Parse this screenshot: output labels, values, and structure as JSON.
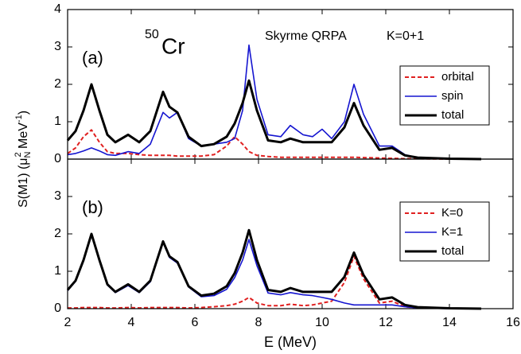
{
  "chart_data": [
    {
      "type": "line",
      "panel_label": "(a)",
      "nucleus": {
        "mass": "50",
        "symbol": "Cr"
      },
      "annotations": [
        "Skyrme QRPA",
        "K=0+1"
      ],
      "x": [
        2,
        2.25,
        2.5,
        2.75,
        3,
        3.25,
        3.5,
        3.9,
        4.25,
        4.6,
        5,
        5.2,
        5.45,
        5.8,
        6.2,
        6.6,
        7,
        7.25,
        7.5,
        7.7,
        7.95,
        8.3,
        8.7,
        9,
        9.4,
        9.7,
        10,
        10.3,
        10.7,
        11,
        11.3,
        11.8,
        12.2,
        12.6,
        13,
        14,
        15
      ],
      "series": [
        {
          "name": "orbital",
          "color": "#e02020",
          "linestyle": "dashed",
          "values": [
            0.15,
            0.3,
            0.6,
            0.78,
            0.45,
            0.2,
            0.15,
            0.15,
            0.12,
            0.1,
            0.1,
            0.1,
            0.08,
            0.08,
            0.08,
            0.12,
            0.35,
            0.6,
            0.4,
            0.2,
            0.1,
            0.07,
            0.05,
            0.05,
            0.05,
            0.05,
            0.05,
            0.05,
            0.05,
            0.05,
            0.04,
            0.03,
            0.02,
            0.01,
            0.01,
            0,
            0
          ]
        },
        {
          "name": "spin",
          "color": "#1515d0",
          "linestyle": "solid",
          "values": [
            0.12,
            0.15,
            0.22,
            0.3,
            0.22,
            0.12,
            0.1,
            0.2,
            0.15,
            0.4,
            1.25,
            1.1,
            1.25,
            0.55,
            0.35,
            0.4,
            0.45,
            0.55,
            1.3,
            3.05,
            1.6,
            0.65,
            0.6,
            0.9,
            0.65,
            0.6,
            0.8,
            0.55,
            1.0,
            2.0,
            1.2,
            0.35,
            0.35,
            0.12,
            0.04,
            0.01,
            0
          ]
        },
        {
          "name": "total",
          "color": "#000000",
          "linestyle": "thick",
          "values": [
            0.5,
            0.75,
            1.3,
            2.0,
            1.3,
            0.65,
            0.45,
            0.65,
            0.45,
            0.75,
            1.8,
            1.4,
            1.25,
            0.6,
            0.35,
            0.4,
            0.6,
            0.95,
            1.5,
            2.1,
            1.3,
            0.5,
            0.45,
            0.55,
            0.45,
            0.45,
            0.45,
            0.45,
            0.85,
            1.5,
            0.9,
            0.25,
            0.3,
            0.1,
            0.04,
            0.01,
            0
          ]
        }
      ],
      "xlim": [
        2,
        16
      ],
      "ylim": [
        0,
        4
      ],
      "yticks": [
        0,
        1,
        2,
        3,
        4
      ],
      "legend": "upper right"
    },
    {
      "type": "line",
      "panel_label": "(b)",
      "x": [
        2,
        2.25,
        2.5,
        2.75,
        3,
        3.25,
        3.5,
        3.9,
        4.25,
        4.6,
        5,
        5.2,
        5.45,
        5.8,
        6.2,
        6.6,
        7,
        7.25,
        7.5,
        7.7,
        7.95,
        8.3,
        8.7,
        9,
        9.4,
        9.7,
        10,
        10.3,
        10.7,
        11,
        11.3,
        11.8,
        12.2,
        12.6,
        13,
        14,
        15
      ],
      "series": [
        {
          "name": "K=0",
          "color": "#e02020",
          "linestyle": "dashed",
          "values": [
            0.02,
            0.02,
            0.03,
            0.03,
            0.03,
            0.02,
            0.02,
            0.03,
            0.02,
            0.03,
            0.03,
            0.03,
            0.03,
            0.02,
            0.03,
            0.05,
            0.08,
            0.12,
            0.2,
            0.3,
            0.15,
            0.08,
            0.08,
            0.12,
            0.08,
            0.1,
            0.15,
            0.2,
            0.7,
            1.4,
            0.8,
            0.15,
            0.2,
            0.05,
            0.02,
            0.01,
            0
          ]
        },
        {
          "name": "K=1",
          "color": "#1515d0",
          "linestyle": "solid",
          "values": [
            0.48,
            0.73,
            1.27,
            1.97,
            1.27,
            0.63,
            0.43,
            0.62,
            0.43,
            0.72,
            1.77,
            1.37,
            1.22,
            0.58,
            0.32,
            0.35,
            0.52,
            0.83,
            1.3,
            1.85,
            1.15,
            0.42,
            0.37,
            0.43,
            0.37,
            0.35,
            0.3,
            0.25,
            0.15,
            0.1,
            0.1,
            0.1,
            0.1,
            0.05,
            0.02,
            0,
            0
          ]
        },
        {
          "name": "total",
          "color": "#000000",
          "linestyle": "thick",
          "values": [
            0.5,
            0.75,
            1.3,
            2.0,
            1.3,
            0.65,
            0.45,
            0.65,
            0.45,
            0.75,
            1.8,
            1.4,
            1.25,
            0.6,
            0.35,
            0.4,
            0.6,
            0.95,
            1.5,
            2.1,
            1.3,
            0.5,
            0.45,
            0.55,
            0.45,
            0.45,
            0.45,
            0.45,
            0.85,
            1.5,
            0.9,
            0.25,
            0.3,
            0.1,
            0.04,
            0.01,
            0
          ]
        }
      ],
      "xlim": [
        2,
        16
      ],
      "xticks": [
        2,
        4,
        6,
        8,
        10,
        12,
        14,
        16
      ],
      "ylim": [
        0,
        4
      ],
      "yticks": [
        0,
        1,
        2,
        3
      ],
      "legend": "upper right"
    }
  ],
  "axes": {
    "x_label": "E (MeV)",
    "y_label": [
      "S(M1) (μ",
      "N",
      "2",
      " MeV",
      "-1",
      ")"
    ]
  }
}
